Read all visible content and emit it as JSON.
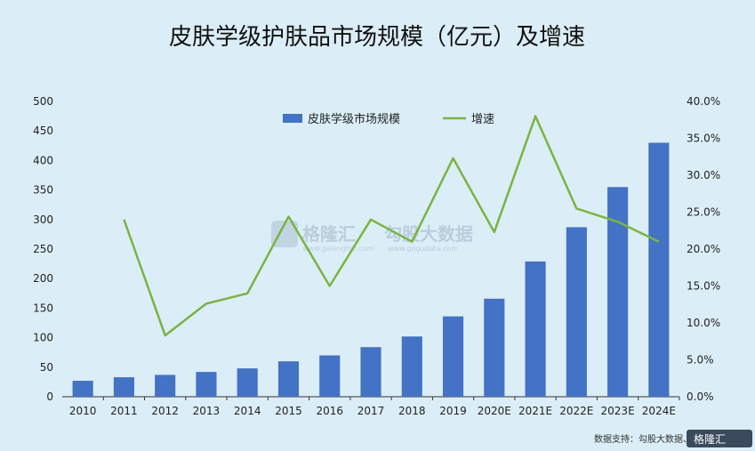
{
  "chart_data": {
    "type": "bar+line",
    "title": "皮肤学级护肤品市场规模（亿元）及增速",
    "categories": [
      "2010",
      "2011",
      "2012",
      "2013",
      "2014",
      "2015",
      "2016",
      "2017",
      "2018",
      "2019",
      "2020E",
      "2021E",
      "2022E",
      "2023E",
      "2024E"
    ],
    "series": [
      {
        "name": "皮肤学级市场规模",
        "type": "bar",
        "axis": "left",
        "color": "#4472c4",
        "values": [
          27,
          33,
          37,
          42,
          48,
          60,
          70,
          84,
          102,
          136,
          166,
          229,
          287,
          355,
          430
        ]
      },
      {
        "name": "增速",
        "type": "line",
        "axis": "right",
        "color": "#7cb342",
        "values": [
          null,
          0.24,
          0.083,
          0.126,
          0.14,
          0.244,
          0.15,
          0.24,
          0.21,
          0.323,
          0.223,
          0.38,
          0.255,
          0.237,
          0.21
        ]
      }
    ],
    "y_left": {
      "min": 0,
      "max": 500,
      "ticks": [
        "0",
        "50",
        "100",
        "150",
        "200",
        "250",
        "300",
        "350",
        "400",
        "450",
        "500"
      ]
    },
    "y_right": {
      "min": 0,
      "max": 0.4,
      "ticks": [
        "0.0%",
        "5.0%",
        "10.0%",
        "15.0%",
        "20.0%",
        "25.0%",
        "30.0%",
        "35.0%",
        "40.0%"
      ]
    },
    "legend": {
      "placement": "top-center"
    },
    "grid": false
  },
  "watermark": {
    "brand": "格隆汇",
    "brand2": "勾股大数据",
    "url1": "www.gelonghui.com",
    "url2": "www.gogudata.com"
  },
  "source": "数据支持：勾股大数据、Euromonitor",
  "corner_logo": "格隆汇"
}
